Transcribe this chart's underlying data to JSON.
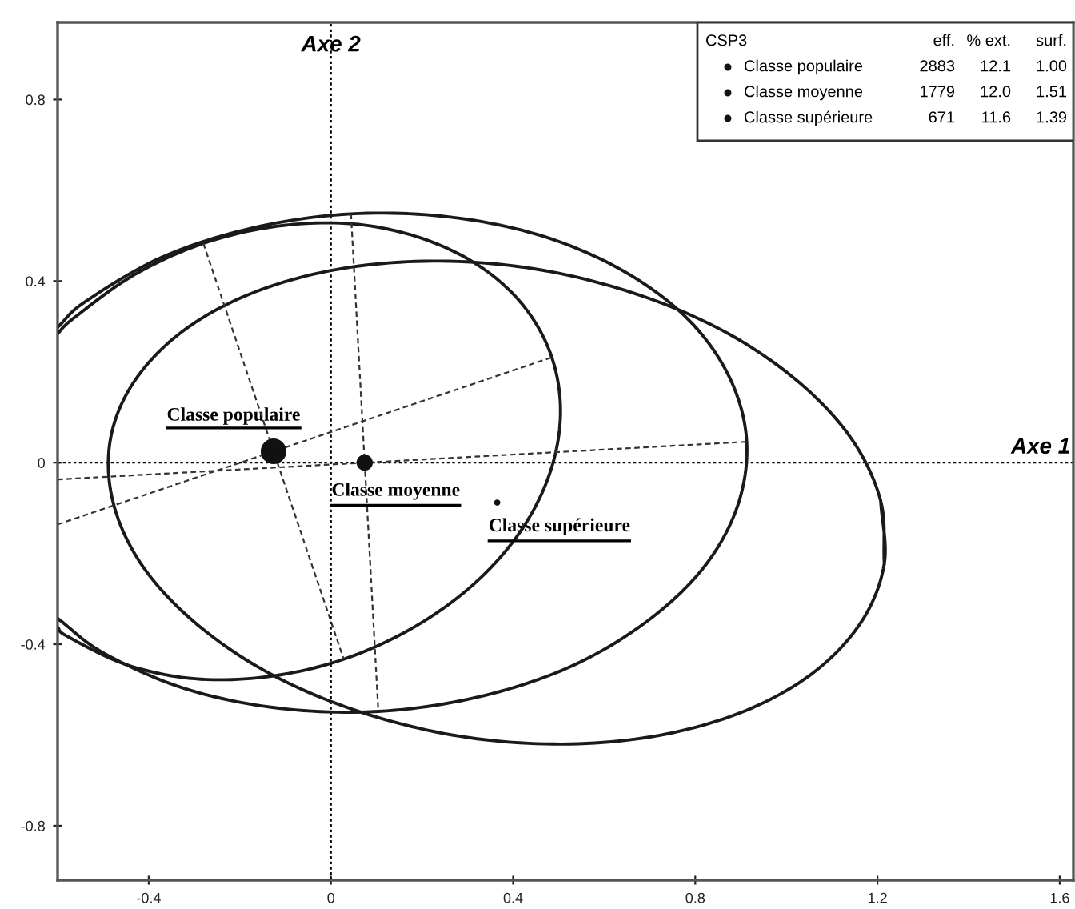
{
  "chart_data": {
    "type": "bubble",
    "legend_title": "CSP3",
    "legend": "top right",
    "xlim": [
      -0.6,
      1.63
    ],
    "ylim": [
      -0.92,
      0.97
    ],
    "xticks": [
      -0.4,
      0,
      0.4,
      0.8,
      1.2,
      1.6
    ],
    "yticks": [
      -0.8,
      -0.4,
      0,
      0.4,
      0.8
    ],
    "grid": false,
    "ref_lines": [
      {
        "axis": "x",
        "value": 0,
        "label": "Axe 2",
        "line_style": "dotted",
        "color": "#000000"
      },
      {
        "axis": "y",
        "value": 0,
        "label": "Axe 1",
        "line_style": "dotted",
        "color": "#000000"
      }
    ],
    "annotations": [
      "eff.",
      "% ext.",
      "surf.",
      "2883",
      "12.1",
      "1.00",
      "1779",
      "12.0",
      "1.51",
      "671",
      "11.6",
      "1.39"
    ],
    "series": [
      {
        "type": "line",
        "color": "#1a1a1a",
        "line_style": "solid",
        "x": [
          -0.6,
          -0.578,
          -0.449,
          -0.299,
          -0.135,
          0.028,
          0.181,
          0.313,
          0.415,
          0.48,
          0.504,
          0.485,
          0.424,
          0.326,
          0.197,
          0.047,
          -0.117,
          -0.28,
          -0.433,
          -0.565,
          -0.6
        ],
        "values": [
          -0.363,
          -0.383,
          -0.445,
          -0.476,
          -0.471,
          -0.433,
          -0.363,
          -0.268,
          -0.153,
          -0.025,
          0.106,
          0.232,
          0.344,
          0.433,
          0.495,
          0.526,
          0.521,
          0.483,
          0.413,
          0.318,
          0.284
        ]
      },
      {
        "type": "line",
        "color": "#1a1a1a",
        "line_style": "solid",
        "x": [
          -0.6,
          -0.498,
          -0.32,
          -0.114,
          0.104,
          0.32,
          0.52,
          0.688,
          0.816,
          0.892,
          0.913,
          0.876,
          0.786,
          0.646,
          0.468,
          0.262,
          0.044,
          -0.172,
          -0.372,
          -0.54,
          -0.6
        ],
        "values": [
          -0.343,
          -0.42,
          -0.498,
          -0.541,
          -0.548,
          -0.517,
          -0.452,
          -0.354,
          -0.234,
          -0.098,
          0.046,
          0.186,
          0.314,
          0.42,
          0.498,
          0.541,
          0.548,
          0.517,
          0.452,
          0.354,
          0.298
        ]
      },
      {
        "type": "line",
        "color": "#1a1a1a",
        "line_style": "solid",
        "x": [
          1.215,
          1.207,
          1.142,
          1.023,
          0.86,
          0.663,
          0.446,
          0.223,
          0.01,
          -0.179,
          -0.33,
          -0.435,
          -0.485,
          -0.477,
          -0.412,
          -0.293,
          -0.13,
          0.067,
          0.284,
          0.507,
          0.72,
          0.909,
          1.06,
          1.165,
          1.215,
          1.207
        ],
        "values": [
          -0.222,
          -0.084,
          0.054,
          0.181,
          0.291,
          0.374,
          0.427,
          0.444,
          0.425,
          0.371,
          0.286,
          0.174,
          0.046,
          -0.092,
          -0.23,
          -0.357,
          -0.467,
          -0.55,
          -0.603,
          -0.62,
          -0.601,
          -0.547,
          -0.462,
          -0.35,
          -0.222,
          -0.084
        ]
      },
      {
        "type": "line",
        "color": "#333333",
        "line_style": "dashed",
        "x": [
          -0.6,
          0.485
        ],
        "values": [
          -0.136,
          0.232
        ]
      },
      {
        "type": "line",
        "color": "#333333",
        "line_style": "dashed",
        "x": [
          -0.28,
          0.028
        ],
        "values": [
          0.483,
          -0.433
        ]
      },
      {
        "type": "line",
        "color": "#333333",
        "line_style": "dashed",
        "x": [
          -0.6,
          0.913
        ],
        "values": [
          -0.037,
          0.046
        ]
      },
      {
        "type": "line",
        "color": "#333333",
        "line_style": "dashed",
        "x": [
          0.044,
          0.104
        ],
        "values": [
          0.548,
          -0.548
        ]
      },
      {
        "name": "Classe populaire",
        "color": "#111111",
        "x": [
          -0.126
        ],
        "values": [
          0.025
        ],
        "sizes": [
          1
        ]
      },
      {
        "name": "Classe moyenne",
        "color": "#111111",
        "x": [
          0.074
        ],
        "values": [
          0.0
        ],
        "sizes": [
          0.4
        ]
      },
      {
        "name": "Classe supérieure",
        "color": "#111111",
        "x": [
          0.365
        ],
        "values": [
          -0.088
        ],
        "sizes": [
          0.06
        ]
      }
    ]
  }
}
